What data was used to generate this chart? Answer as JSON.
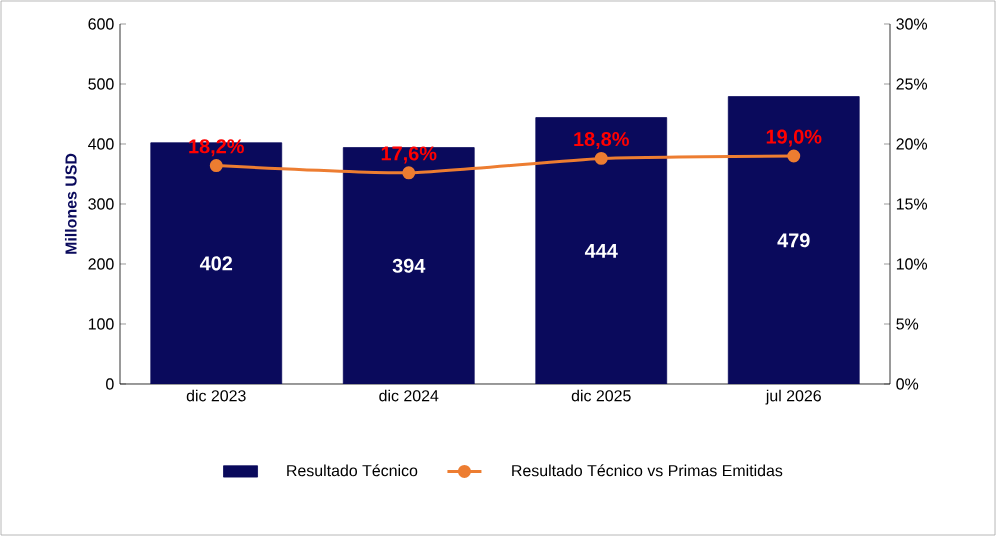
{
  "chart_data": {
    "type": "bar",
    "categories": [
      "dic 2023",
      "dic 2024",
      "dic 2025",
      "jul 2026"
    ],
    "series": [
      {
        "name": "Resultado Técnico",
        "color": "#0a0a5c",
        "values": [
          402,
          394,
          444,
          479
        ],
        "value_labels": [
          "402",
          "394",
          "444",
          "479"
        ]
      },
      {
        "name": "Resultado Técnico vs Primas Emitidas",
        "type": "line",
        "axis": "y2",
        "color": "#ed7d31",
        "values": [
          18.2,
          17.6,
          18.8,
          19.0
        ],
        "value_labels": [
          "18,2%",
          "17,6%",
          "18,8%",
          "19,0%"
        ]
      }
    ],
    "ylabel": "Millones USD",
    "ylim": [
      0,
      600
    ],
    "yticks": [
      0,
      100,
      200,
      300,
      400,
      500,
      600
    ],
    "y2lim": [
      0,
      30
    ],
    "y2ticks": [
      {
        "value": 0,
        "label": "0%"
      },
      {
        "value": 5,
        "label": "5%"
      },
      {
        "value": 10,
        "label": "10%"
      },
      {
        "value": 15,
        "label": "15%"
      },
      {
        "value": 20,
        "label": "20%"
      },
      {
        "value": 25,
        "label": "25%"
      },
      {
        "value": 30,
        "label": "30%"
      }
    ],
    "marker": "circle",
    "legend": "bottom",
    "grid": false
  }
}
